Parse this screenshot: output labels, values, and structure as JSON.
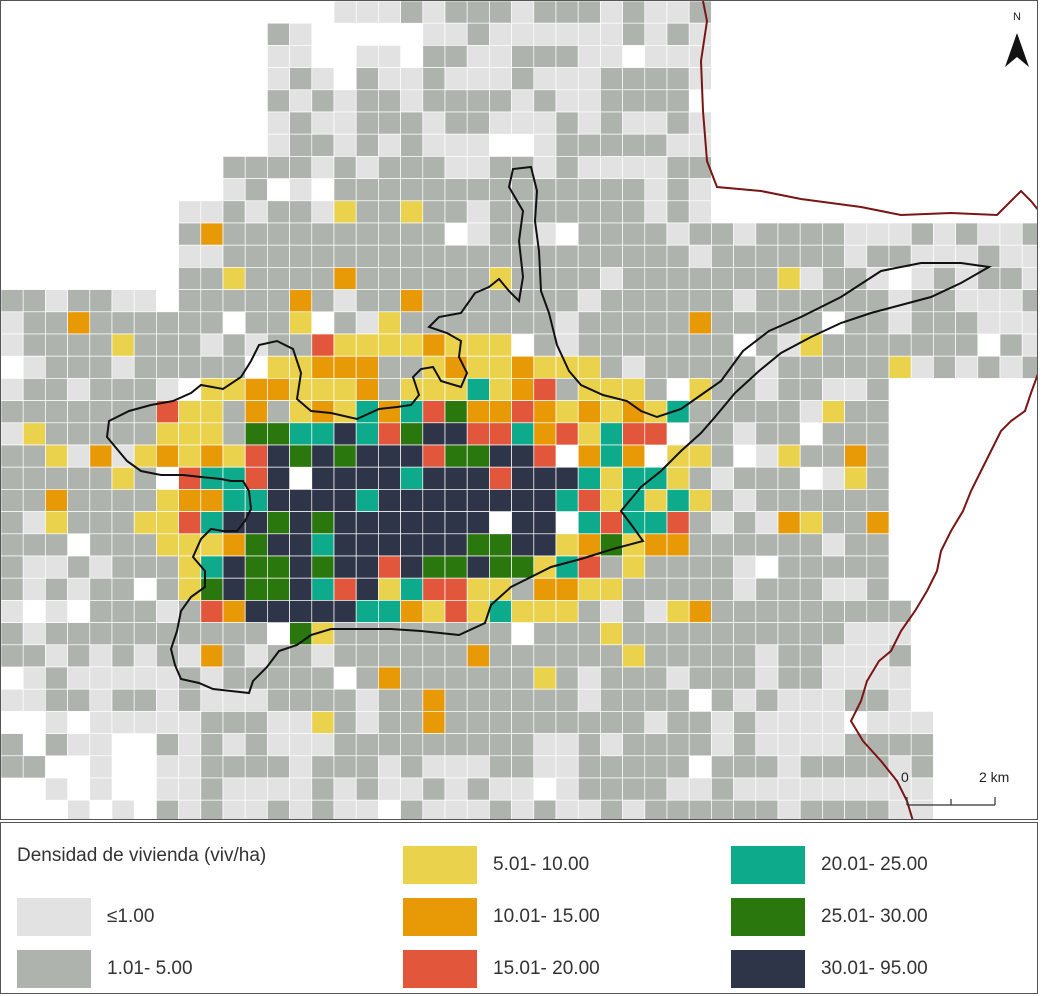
{
  "legend": {
    "title": "Densidad de vivienda (viv/ha)",
    "classes": [
      {
        "id": "c0",
        "label": "≤1.00",
        "color": "#e2e2e2"
      },
      {
        "id": "c1",
        "label": "1.01- 5.00",
        "color": "#aeb3ae"
      },
      {
        "id": "c2",
        "label": "5.01- 10.00",
        "color": "#ead24d"
      },
      {
        "id": "c3",
        "label": "10.01- 15.00",
        "color": "#e89a06"
      },
      {
        "id": "c4",
        "label": "15.01- 20.00",
        "color": "#e2563c"
      },
      {
        "id": "c5",
        "label": "20.01- 25.00",
        "color": "#0dab8b"
      },
      {
        "id": "c6",
        "label": "25.01- 30.00",
        "color": "#2a770e"
      },
      {
        "id": "c7",
        "label": "30.01- 95.00",
        "color": "#2f3548"
      }
    ]
  },
  "north_arrow": {
    "label": "N",
    "icon": "north-arrow-icon"
  },
  "scale_bar": {
    "start_label": "0",
    "end_label": "2 km"
  },
  "boundary_colors": {
    "municipal": "#111111",
    "border": "#7a1515"
  }
}
